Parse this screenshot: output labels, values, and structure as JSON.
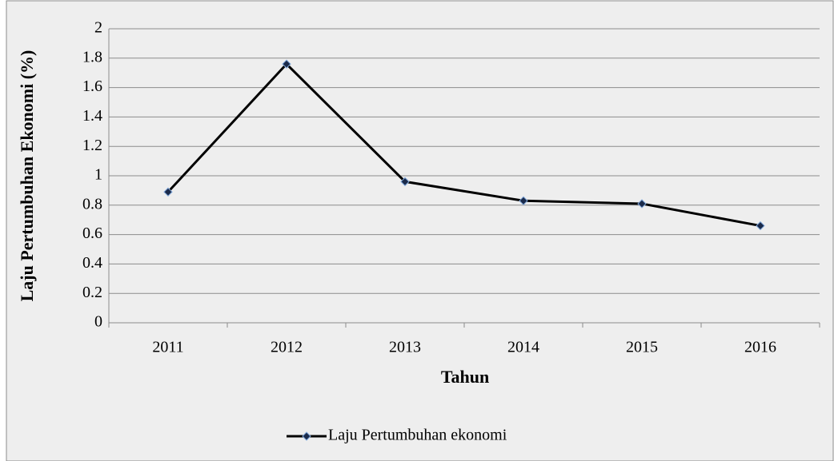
{
  "chart_data": {
    "type": "line",
    "x_label": "Tahun",
    "y_label": "Laju Pertumbuhan Ekonomi (%)",
    "categories": [
      "2011",
      "2012",
      "2013",
      "2014",
      "2015",
      "2016"
    ],
    "series": [
      {
        "name": "Laju Pertumbuhan ekonomi",
        "color": "#000000",
        "values": [
          0.89,
          1.76,
          0.96,
          0.83,
          0.81,
          0.66
        ]
      }
    ],
    "ylim": [
      0,
      2
    ],
    "yticks": [
      0,
      0.2,
      0.4,
      0.6,
      0.8,
      1,
      1.2,
      1.4,
      1.6,
      1.8,
      2
    ],
    "grid": true,
    "legend": "bottom"
  }
}
